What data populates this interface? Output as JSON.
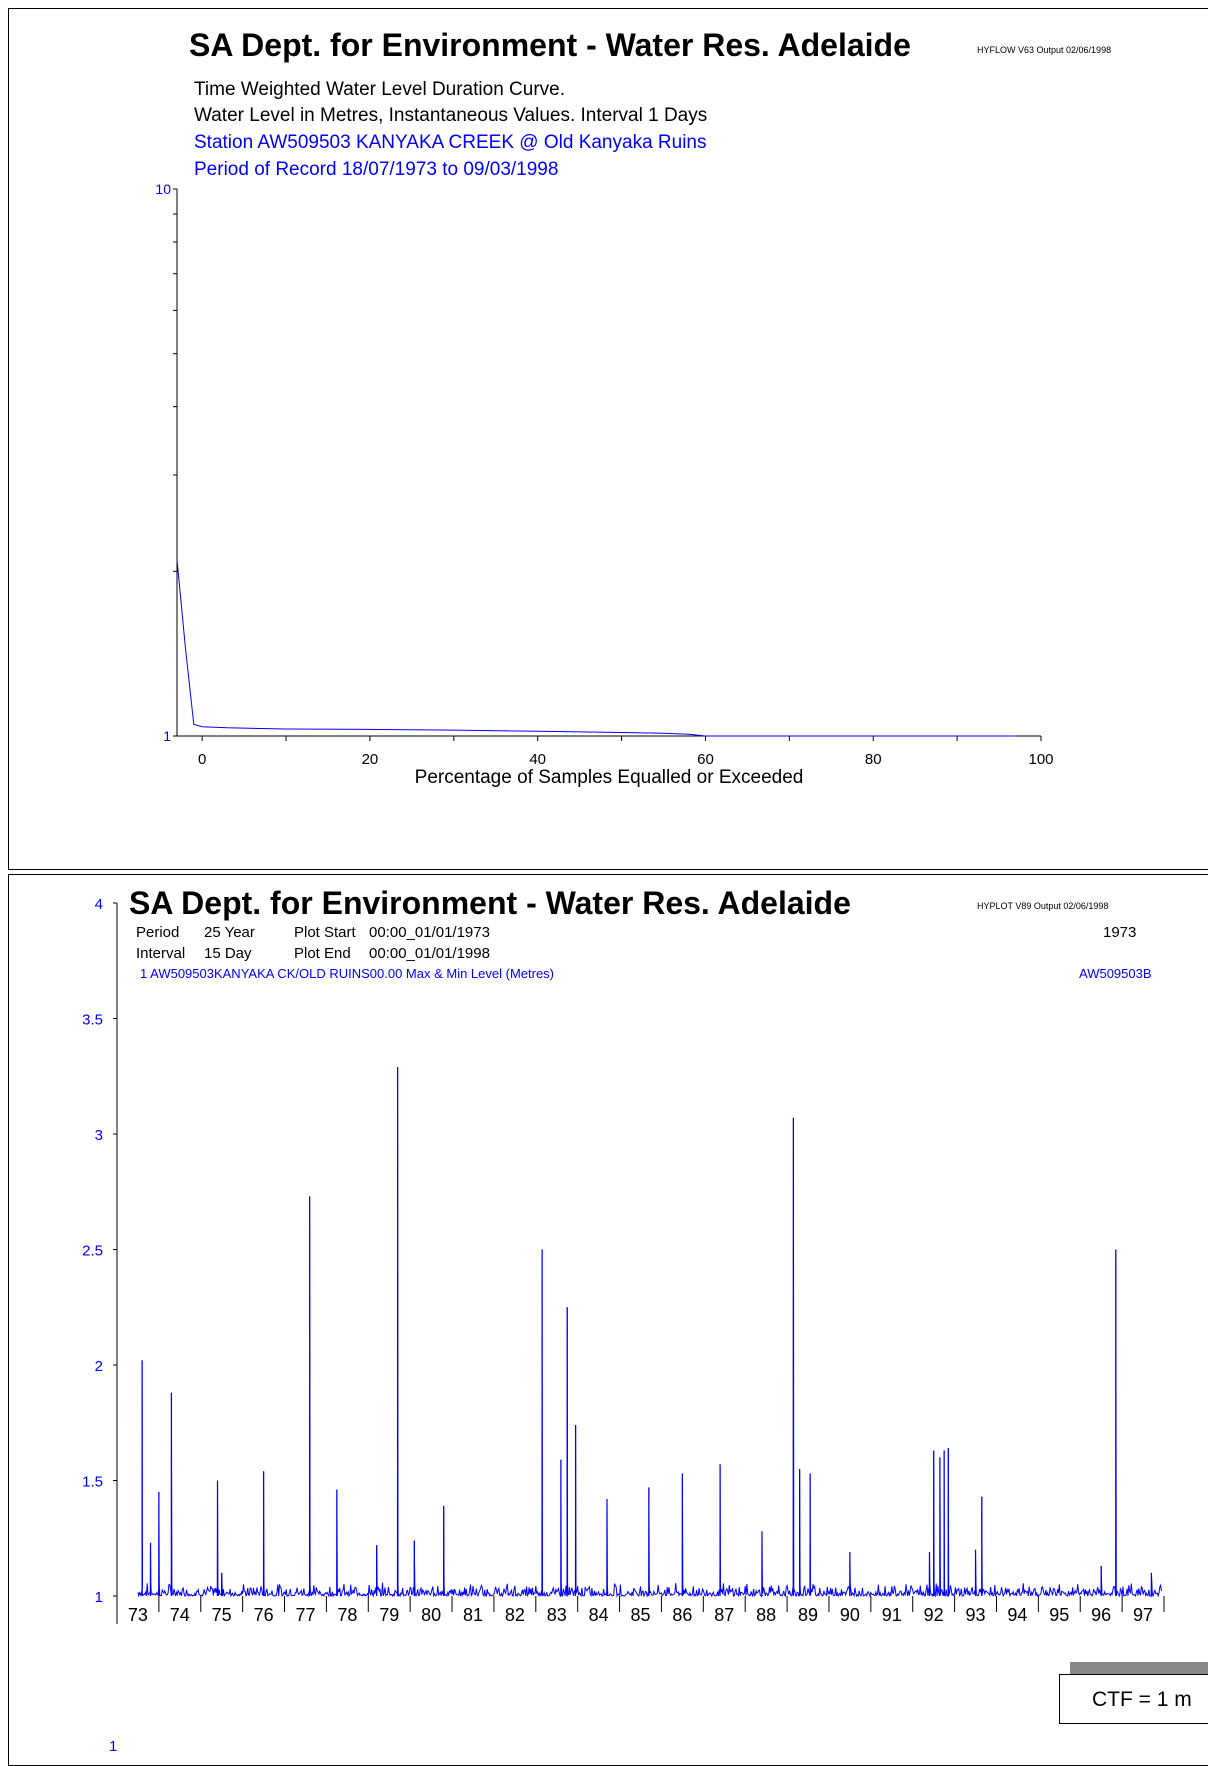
{
  "panel1": {
    "title": "SA Dept. for Environment - Water Res. Adelaide",
    "version": "HYFLOW V63  Output 02/06/1998",
    "subtitle1": "Time Weighted Water Level Duration Curve.",
    "subtitle2": "Water Level in Metres,   Instantaneous Values.  Interval   1 Days",
    "station": "Station AW509503  KANYAKA CREEK @ Old Kanyaka Ruins",
    "period": "Period of Record 18/07/1973 to 09/03/1998"
  },
  "panel2": {
    "title": "SA Dept. for Environment - Water Res. Adelaide",
    "version": "HYPLOT V89  Output 02/06/1998",
    "period_label": "Period",
    "period_value": "25 Year",
    "interval_label": "Interval",
    "interval_value": "15 Day",
    "plot_start_label": "Plot Start",
    "plot_start_value": "00:00_01/01/1973",
    "plot_end_label": "Plot End",
    "plot_end_value": "00:00_01/01/1998",
    "year_label": "1973",
    "series_line": "1   AW509503KANYAKA CK/OLD RUINS00.00   Max & Min  Level        (Metres)",
    "site_code": "AW509503B",
    "ctf_label": "CTF = 1 m",
    "bottom_y_label": "1"
  },
  "colors": {
    "series": "#0000ff",
    "axis": "#000000",
    "ctf_shadow": "#888888"
  },
  "chart_data": [
    {
      "type": "line",
      "title": "Time Weighted Water Level Duration Curve.",
      "xlabel": "Percentage of Samples Equalled or Exceeded",
      "ylabel": "",
      "x_ticks": [
        "0",
        "20",
        "40",
        "60",
        "80",
        "100"
      ],
      "y_ticks": [
        "1",
        "10"
      ],
      "y_scale": "log",
      "xlim": [
        -3,
        100
      ],
      "ylim": [
        1,
        10
      ],
      "series": [
        {
          "x": [
            -3,
            -2,
            -1,
            0,
            3,
            10,
            20,
            30,
            40,
            50,
            55,
            58,
            60,
            65,
            70,
            80,
            90,
            97
          ],
          "y": [
            2.1,
            1.45,
            1.05,
            1.04,
            1.035,
            1.03,
            1.028,
            1.025,
            1.02,
            1.015,
            1.012,
            1.007,
            1.0,
            1.0,
            1.0,
            1.0,
            1.0,
            1.0
          ]
        }
      ]
    },
    {
      "type": "line",
      "title": "",
      "xlabel": "",
      "ylabel": "",
      "categories": [
        "73",
        "74",
        "75",
        "76",
        "77",
        "78",
        "79",
        "80",
        "81",
        "82",
        "83",
        "84",
        "85",
        "86",
        "87",
        "88",
        "89",
        "90",
        "91",
        "92",
        "93",
        "94",
        "95",
        "96",
        "97"
      ],
      "y_ticks": [
        "1",
        "1.5",
        "2",
        "2.5",
        "3",
        "3.5",
        "4"
      ],
      "xlim": [
        1973,
        1998
      ],
      "ylim": [
        1,
        4
      ],
      "series": [
        {
          "name": "AW509503B",
          "peaks": [
            {
              "x": 1973.6,
              "y": 2.02
            },
            {
              "x": 1973.8,
              "y": 1.23
            },
            {
              "x": 1974.0,
              "y": 1.45
            },
            {
              "x": 1974.3,
              "y": 1.88
            },
            {
              "x": 1975.4,
              "y": 1.5
            },
            {
              "x": 1975.5,
              "y": 1.1
            },
            {
              "x": 1976.5,
              "y": 1.54
            },
            {
              "x": 1977.6,
              "y": 2.73
            },
            {
              "x": 1978.25,
              "y": 1.46
            },
            {
              "x": 1979.2,
              "y": 1.22
            },
            {
              "x": 1979.7,
              "y": 3.29
            },
            {
              "x": 1980.1,
              "y": 1.24
            },
            {
              "x": 1980.8,
              "y": 1.39
            },
            {
              "x": 1983.15,
              "y": 2.5
            },
            {
              "x": 1983.6,
              "y": 1.59
            },
            {
              "x": 1983.75,
              "y": 2.25
            },
            {
              "x": 1983.95,
              "y": 1.74
            },
            {
              "x": 1984.7,
              "y": 1.42
            },
            {
              "x": 1985.7,
              "y": 1.47
            },
            {
              "x": 1986.5,
              "y": 1.53
            },
            {
              "x": 1987.4,
              "y": 1.57
            },
            {
              "x": 1988.4,
              "y": 1.28
            },
            {
              "x": 1989.15,
              "y": 3.07
            },
            {
              "x": 1989.3,
              "y": 1.55
            },
            {
              "x": 1989.55,
              "y": 1.53
            },
            {
              "x": 1990.5,
              "y": 1.19
            },
            {
              "x": 1992.4,
              "y": 1.19
            },
            {
              "x": 1992.5,
              "y": 1.63
            },
            {
              "x": 1992.65,
              "y": 1.6
            },
            {
              "x": 1992.75,
              "y": 1.63
            },
            {
              "x": 1992.85,
              "y": 1.64
            },
            {
              "x": 1993.5,
              "y": 1.2
            },
            {
              "x": 1993.65,
              "y": 1.43
            },
            {
              "x": 1996.5,
              "y": 1.13
            },
            {
              "x": 1996.85,
              "y": 2.5
            },
            {
              "x": 1997.7,
              "y": 1.1
            }
          ]
        }
      ]
    }
  ]
}
